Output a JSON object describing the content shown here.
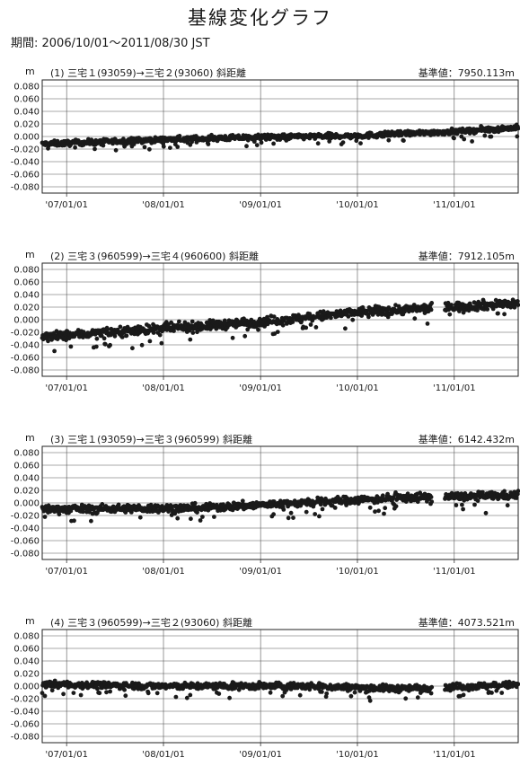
{
  "title": "基線変化グラフ",
  "period": "期間: 2006/10/01～2011/08/30 JST",
  "chart_data": [
    {
      "type": "scatter",
      "unit": "m",
      "label": "(1) 三宅１(93059)→三宅２(93060)  斜距離",
      "baseline": "基準値：7950.113m",
      "ylim": [
        -0.09,
        0.09
      ],
      "yticks": [
        "0.080",
        "0.060",
        "0.040",
        "0.020",
        "0.000",
        "-0.020",
        "-0.040",
        "-0.060",
        "-0.080"
      ],
      "xticks": [
        "'07/01/01",
        "'08/01/01",
        "'09/01/01",
        "'10/01/01",
        "'11/01/01"
      ],
      "xlim": [
        "2006-10-01",
        "2011-08-30"
      ],
      "grid": true,
      "trend": [
        {
          "x": "2006-10-01",
          "y": -0.012
        },
        {
          "x": "2008-01-01",
          "y": -0.005
        },
        {
          "x": "2009-01-01",
          "y": -0.001
        },
        {
          "x": "2010-01-01",
          "y": 0.001
        },
        {
          "x": "2011-01-01",
          "y": 0.008
        },
        {
          "x": "2011-08-30",
          "y": 0.014
        }
      ],
      "gaps": [],
      "spread": 0.004
    },
    {
      "type": "scatter",
      "unit": "m",
      "label": "(2) 三宅３(960599)→三宅４(960600)  斜距離",
      "baseline": "基準値：7912.105m",
      "ylim": [
        -0.09,
        0.09
      ],
      "yticks": [
        "0.080",
        "0.060",
        "0.040",
        "0.020",
        "0.000",
        "-0.020",
        "-0.040",
        "-0.060",
        "-0.080"
      ],
      "xticks": [
        "'07/01/01",
        "'08/01/01",
        "'09/01/01",
        "'10/01/01",
        "'11/01/01"
      ],
      "xlim": [
        "2006-10-01",
        "2011-08-30"
      ],
      "grid": true,
      "trend": [
        {
          "x": "2006-10-01",
          "y": -0.028
        },
        {
          "x": "2007-06-01",
          "y": -0.02
        },
        {
          "x": "2008-06-01",
          "y": -0.01
        },
        {
          "x": "2009-06-01",
          "y": 0.002
        },
        {
          "x": "2010-01-01",
          "y": 0.012
        },
        {
          "x": "2010-09-15",
          "y": 0.018
        },
        {
          "x": "2011-08-30",
          "y": 0.026
        }
      ],
      "gaps": [
        [
          "2010-10-10",
          "2010-11-25"
        ]
      ],
      "spread": 0.007
    },
    {
      "type": "scatter",
      "unit": "m",
      "label": "(3) 三宅１(93059)→三宅３(960599)  斜距離",
      "baseline": "基準値：6142.432m",
      "ylim": [
        -0.09,
        0.09
      ],
      "yticks": [
        "0.080",
        "0.060",
        "0.040",
        "0.020",
        "0.000",
        "-0.020",
        "-0.040",
        "-0.060",
        "-0.080"
      ],
      "xticks": [
        "'07/01/01",
        "'08/01/01",
        "'09/01/01",
        "'10/01/01",
        "'11/01/01"
      ],
      "xlim": [
        "2006-10-01",
        "2011-08-30"
      ],
      "grid": true,
      "trend": [
        {
          "x": "2006-10-01",
          "y": -0.01
        },
        {
          "x": "2008-06-01",
          "y": -0.008
        },
        {
          "x": "2009-06-01",
          "y": 0.0
        },
        {
          "x": "2010-06-01",
          "y": 0.008
        },
        {
          "x": "2011-08-30",
          "y": 0.012
        }
      ],
      "gaps": [
        [
          "2010-10-10",
          "2010-11-25"
        ]
      ],
      "spread": 0.006
    },
    {
      "type": "scatter",
      "unit": "m",
      "label": "(4) 三宅３(960599)→三宅２(93060)  斜距離",
      "baseline": "基準値：4073.521m",
      "ylim": [
        -0.09,
        0.09
      ],
      "yticks": [
        "0.080",
        "0.060",
        "0.040",
        "0.020",
        "0.000",
        "-0.020",
        "-0.040",
        "-0.060",
        "-0.080"
      ],
      "xticks": [
        "'07/01/01",
        "'08/01/01",
        "'09/01/01",
        "'10/01/01",
        "'11/01/01"
      ],
      "xlim": [
        "2006-10-01",
        "2011-08-30"
      ],
      "grid": true,
      "trend": [
        {
          "x": "2006-10-01",
          "y": 0.003
        },
        {
          "x": "2008-01-01",
          "y": 0.0
        },
        {
          "x": "2009-06-01",
          "y": 0.0
        },
        {
          "x": "2010-06-01",
          "y": -0.004
        },
        {
          "x": "2011-08-30",
          "y": 0.002
        }
      ],
      "gaps": [
        [
          "2010-10-10",
          "2010-11-25"
        ]
      ],
      "spread": 0.005
    }
  ]
}
